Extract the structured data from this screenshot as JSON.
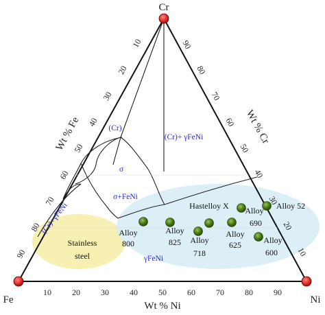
{
  "corners": {
    "top": "Cr",
    "left": "Fe",
    "right": "Ni"
  },
  "axes": {
    "bottom_title": "Wt % Ni",
    "left_title": "Wt % Fe",
    "right_title": "Wt % Cr",
    "bottom_ticks": [
      "10",
      "20",
      "30",
      "40",
      "50",
      "60",
      "70",
      "80",
      "90"
    ],
    "left_ticks": [
      "90",
      "80",
      "70",
      "60",
      "50",
      "40",
      "30",
      "20",
      "10"
    ],
    "right_ticks": [
      "90",
      "80",
      "70",
      "60",
      "50",
      "40",
      "30",
      "20",
      "10"
    ]
  },
  "phases": {
    "cr": "(Cr)",
    "cr_gfeni": "(Cr)+ γFeNi",
    "sigma": "σ",
    "sigma_feni": "σ+FeNi",
    "cr_gfeni_left": "(Cr)+γFeNi",
    "gfeni": "γFeNi"
  },
  "regions": {
    "stainless_line1": "Stainless",
    "stainless_line2": "steel"
  },
  "alloys": {
    "alloy800_l1": "Alloy",
    "alloy800_l2": "800",
    "alloy825_l1": "Alloy",
    "alloy825_l2": "825",
    "alloy718_l1": "Alloy",
    "alloy718_l2": "718",
    "alloy625_l1": "Alloy",
    "alloy625_l2": "625",
    "hastelloy": "Hastelloy X",
    "alloy690_l1": "Alloy",
    "alloy690_l2": "690",
    "alloy52": "Alloy 52",
    "alloy600_l1": "Alloy",
    "alloy600_l2": "600"
  },
  "colors": {
    "corner_marker": "#e0302a",
    "alloy_marker": "#3d6b12",
    "stainless_region": "#f5eeaa",
    "gfeni_region": "#d6ebf5",
    "phase_label": "#2a2ad0"
  }
}
